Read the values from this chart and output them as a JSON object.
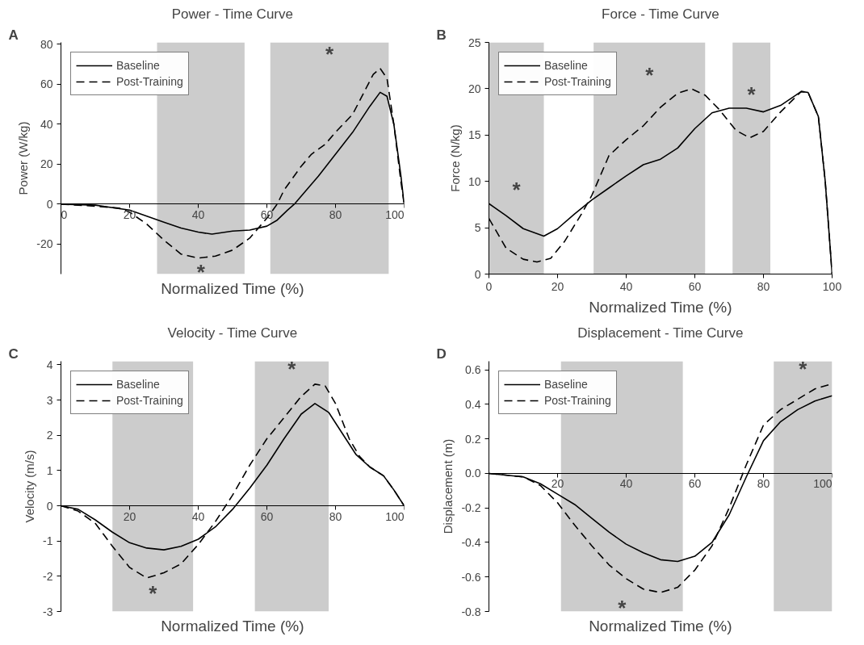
{
  "chart_data": [
    {
      "type": "line",
      "title": "Power - Time Curve",
      "xlabel": "Normalized Time (%)",
      "ylabel": "Power (W/kg)",
      "xlim": [
        0,
        100
      ],
      "xticks": [
        0,
        20,
        40,
        60,
        80,
        100
      ],
      "ylim": [
        -35,
        81
      ],
      "yticks": [
        -20,
        0,
        20,
        40,
        60,
        80
      ],
      "series": [
        {
          "name": "Baseline",
          "color": "#000000",
          "line_style": "solid",
          "x": [
            0,
            10,
            20,
            25,
            30,
            35,
            40,
            44,
            50,
            55,
            60,
            63,
            66,
            68,
            70,
            75,
            80,
            85,
            90,
            93,
            95,
            97,
            99,
            100
          ],
          "values": [
            0,
            -0.5,
            -3,
            -6,
            -9,
            -12,
            -14,
            -15,
            -13.5,
            -13,
            -11,
            -8,
            -3,
            0,
            4,
            14,
            25,
            36,
            49,
            56,
            54,
            40,
            15,
            0
          ]
        },
        {
          "name": "Post-Training",
          "color": "#000000",
          "line_style": "dashed",
          "x": [
            0,
            10,
            17,
            20,
            25,
            30,
            35,
            40,
            45,
            50,
            55,
            60,
            63,
            65,
            70,
            73,
            77,
            80,
            85,
            88,
            91,
            93,
            95,
            97,
            99,
            100
          ],
          "values": [
            0,
            -1,
            -2,
            -4,
            -10,
            -18,
            -25,
            -27,
            -26,
            -23,
            -17,
            -7,
            0,
            7,
            19,
            25,
            30,
            36,
            45,
            55,
            65,
            68,
            63,
            40,
            12,
            0
          ]
        }
      ],
      "bands": [
        {
          "axis": "x",
          "from": 28,
          "to": 53.5,
          "color": "#cccccc",
          "label": "*"
        },
        {
          "axis": "x",
          "from": 61,
          "to": 95.5,
          "color": "#cccccc",
          "label": "*"
        }
      ],
      "annotations": [
        "A"
      ],
      "legend": "top left",
      "grid": false
    },
    {
      "type": "line",
      "title": "Force - Time Curve",
      "xlabel": "Normalized Time (%)",
      "ylabel": "Force (N/kg)",
      "xlim": [
        0,
        100
      ],
      "xticks": [
        0,
        20,
        40,
        60,
        80,
        100
      ],
      "ylim": [
        0,
        25
      ],
      "yticks": [
        0,
        5,
        10,
        15,
        20,
        25
      ],
      "series": [
        {
          "name": "Baseline",
          "color": "#000000",
          "line_style": "solid",
          "x": [
            0,
            5,
            10,
            16,
            20,
            25,
            30,
            35,
            40,
            45,
            50,
            55,
            60,
            65,
            70,
            75,
            80,
            85,
            91,
            93,
            96,
            98,
            100
          ],
          "values": [
            7.6,
            6.3,
            4.9,
            4.1,
            4.9,
            6.5,
            8.0,
            9.3,
            10.6,
            11.8,
            12.4,
            13.6,
            15.7,
            17.4,
            17.9,
            17.9,
            17.5,
            18.2,
            19.7,
            19.6,
            17,
            10,
            0
          ]
        },
        {
          "name": "Post-Training",
          "color": "#000000",
          "line_style": "dashed",
          "x": [
            0,
            5,
            10,
            14,
            18,
            22,
            27,
            30,
            35,
            40,
            45,
            50,
            55,
            59,
            63,
            67,
            72,
            76,
            80,
            85,
            91,
            93,
            96,
            98,
            100
          ],
          "values": [
            6.0,
            2.8,
            1.6,
            1.3,
            1.7,
            3.5,
            6.5,
            8.5,
            12.8,
            14.5,
            16.0,
            18.0,
            19.5,
            20.0,
            19.3,
            17.8,
            15.5,
            14.7,
            15.4,
            17.5,
            19.7,
            19.6,
            17,
            10,
            0
          ]
        }
      ],
      "bands": [
        {
          "axis": "x",
          "from": 0,
          "to": 16,
          "color": "#cccccc",
          "label": "*"
        },
        {
          "axis": "x",
          "from": 30.5,
          "to": 63,
          "color": "#cccccc",
          "label": "*"
        },
        {
          "axis": "x",
          "from": 71,
          "to": 82,
          "color": "#cccccc",
          "label": "*"
        }
      ],
      "annotations": [
        "B"
      ],
      "legend": "top left",
      "grid": false
    },
    {
      "type": "line",
      "title": "Velocity - Time Curve",
      "xlabel": "Normalized Time (%)",
      "ylabel": "Velocity (m/s)",
      "xlim": [
        0,
        100
      ],
      "xticks": [
        {
          "value": 0,
          "label": null
        },
        20,
        40,
        60,
        80,
        100
      ],
      "ylim": [
        -3,
        4.1
      ],
      "yticks": [
        -3,
        -2,
        -1,
        0,
        1,
        2,
        3,
        4
      ],
      "series": [
        {
          "name": "Baseline",
          "color": "#000000",
          "line_style": "solid",
          "x": [
            0,
            5,
            10,
            15,
            20,
            25,
            30,
            35,
            40,
            45,
            50,
            55,
            60,
            65,
            70,
            74,
            78,
            82,
            86,
            90,
            94,
            97,
            100
          ],
          "values": [
            0,
            -0.1,
            -0.4,
            -0.75,
            -1.05,
            -1.2,
            -1.25,
            -1.15,
            -0.95,
            -0.6,
            -0.1,
            0.5,
            1.15,
            1.9,
            2.6,
            2.9,
            2.65,
            2.05,
            1.45,
            1.1,
            0.85,
            0.45,
            0
          ]
        },
        {
          "name": "Post-Training",
          "color": "#000000",
          "line_style": "dashed",
          "x": [
            0,
            5,
            10,
            15,
            20,
            25,
            30,
            35,
            40,
            45,
            50,
            55,
            60,
            65,
            70,
            74,
            77,
            80,
            84,
            87,
            90,
            94,
            97,
            100
          ],
          "values": [
            0,
            -0.15,
            -0.5,
            -1.15,
            -1.75,
            -2.05,
            -1.9,
            -1.65,
            -1.1,
            -0.45,
            0.3,
            1.15,
            1.9,
            2.5,
            3.1,
            3.45,
            3.4,
            2.9,
            1.9,
            1.4,
            1.1,
            0.85,
            0.45,
            0
          ]
        }
      ],
      "bands": [
        {
          "axis": "x",
          "from": 15,
          "to": 38.5,
          "color": "#cccccc",
          "label": "*"
        },
        {
          "axis": "x",
          "from": 56.5,
          "to": 78,
          "color": "#cccccc",
          "label": "*"
        }
      ],
      "annotations": [
        "C"
      ],
      "legend": "top left",
      "grid": false
    },
    {
      "type": "line",
      "title": "Displacement - Time Curve",
      "xlabel": "Normalized Time (%)",
      "ylabel": "Displacement (m)",
      "xlim": [
        0,
        100
      ],
      "xticks": [
        {
          "value": 0,
          "label": null
        },
        20,
        40,
        60,
        80,
        100
      ],
      "ylim": [
        -0.8,
        0.65
      ],
      "yticks": [
        -0.8,
        -0.6,
        -0.4,
        -0.2,
        {
          "value": 0,
          "label": "0.0"
        },
        0.2,
        0.4,
        0.6
      ],
      "series": [
        {
          "name": "Baseline",
          "color": "#000000",
          "line_style": "solid",
          "x": [
            0,
            10,
            15,
            20,
            25,
            30,
            35,
            40,
            45,
            50,
            55,
            60,
            65,
            70,
            75,
            80,
            85,
            90,
            95,
            100
          ],
          "values": [
            0,
            -0.02,
            -0.06,
            -0.12,
            -0.18,
            -0.26,
            -0.34,
            -0.41,
            -0.46,
            -0.5,
            -0.51,
            -0.48,
            -0.4,
            -0.24,
            -0.02,
            0.19,
            0.3,
            0.37,
            0.42,
            0.45
          ]
        },
        {
          "name": "Post-Training",
          "color": "#000000",
          "line_style": "dashed",
          "x": [
            0,
            10,
            15,
            20,
            25,
            30,
            35,
            40,
            45,
            50,
            55,
            60,
            65,
            70,
            75,
            80,
            85,
            90,
            95,
            100
          ],
          "values": [
            0,
            -0.02,
            -0.07,
            -0.17,
            -0.3,
            -0.42,
            -0.53,
            -0.61,
            -0.67,
            -0.69,
            -0.66,
            -0.56,
            -0.42,
            -0.2,
            0.05,
            0.28,
            0.37,
            0.43,
            0.49,
            0.52
          ]
        }
      ],
      "bands": [
        {
          "axis": "x",
          "from": 21,
          "to": 56.5,
          "color": "#cccccc",
          "label": "*"
        },
        {
          "axis": "x",
          "from": 83,
          "to": 100,
          "color": "#cccccc",
          "label": "*"
        }
      ],
      "annotations": [
        "D"
      ],
      "legend": "top left",
      "grid": false
    }
  ]
}
